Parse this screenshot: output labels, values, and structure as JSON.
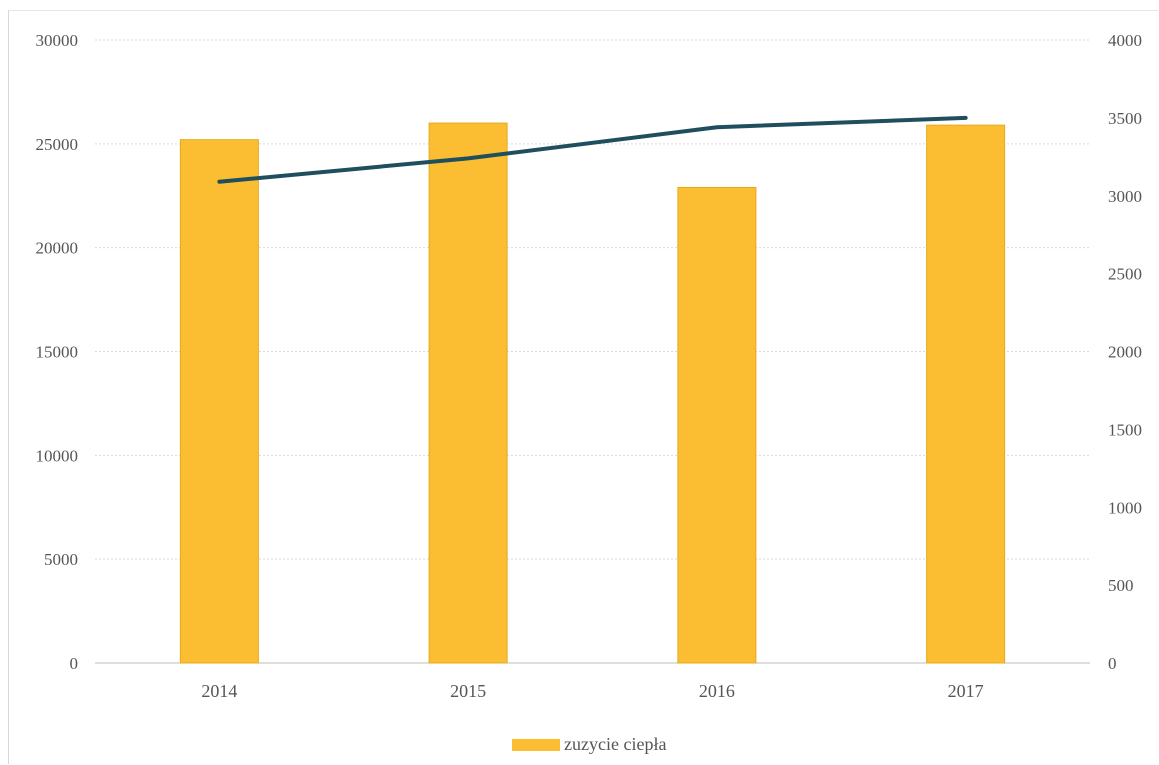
{
  "chart_data": {
    "type": "bar",
    "title": "",
    "categories": [
      "2014",
      "2015",
      "2016",
      "2017"
    ],
    "series": [
      {
        "name": "zuzycie ciepła",
        "kind": "bar",
        "axis": "left",
        "color": "#fbbd32",
        "values": [
          25200,
          26000,
          22900,
          25900
        ]
      },
      {
        "kind": "line",
        "axis": "right",
        "color": "#1f4e5e",
        "values": [
          3090,
          3240,
          3440,
          3500
        ]
      }
    ],
    "y_left": {
      "min": 0,
      "max": 30000,
      "ticks": [
        0,
        5000,
        10000,
        15000,
        20000,
        25000,
        30000
      ]
    },
    "y_right": {
      "min": 0,
      "max": 4000,
      "ticks": [
        0,
        500,
        1000,
        1500,
        2000,
        2500,
        3000,
        3500,
        4000
      ]
    },
    "grid": true,
    "legend": {
      "position": "bottom",
      "entries": [
        "zuzycie ciepła"
      ]
    }
  }
}
